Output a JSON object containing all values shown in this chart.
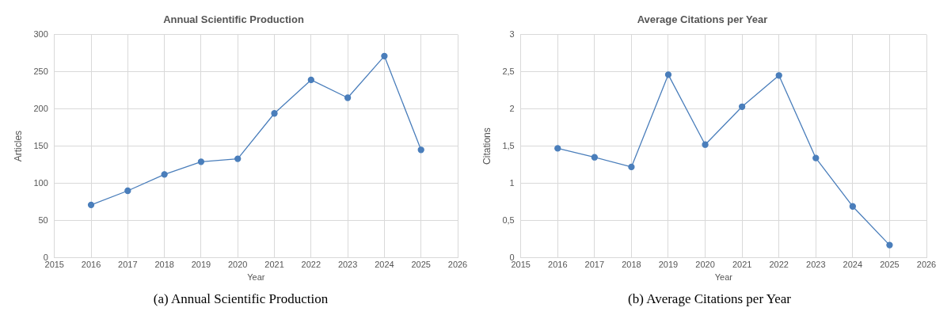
{
  "chart_data": [
    {
      "type": "line",
      "title": "Annual Scientific Production",
      "xlabel": "Year",
      "ylabel": "Articles",
      "x": [
        2016,
        2017,
        2018,
        2019,
        2020,
        2021,
        2022,
        2023,
        2024,
        2025
      ],
      "series": [
        {
          "color": "#4a7ebb",
          "values": [
            71,
            90,
            112,
            129,
            133,
            194,
            239,
            215,
            271,
            145
          ]
        }
      ],
      "xlim": [
        2015,
        2026
      ],
      "xticks": [
        2015,
        2016,
        2017,
        2018,
        2019,
        2020,
        2021,
        2022,
        2023,
        2024,
        2025,
        2026
      ],
      "ylim": [
        0,
        300
      ],
      "yticks": [
        0,
        50,
        100,
        150,
        200,
        250,
        300
      ],
      "grid": true,
      "legend": false,
      "marker": "circle",
      "line_style": "solid",
      "annotations": [
        "(a) Annual Scientific Production"
      ]
    },
    {
      "type": "line",
      "title": "Average Citations per Year",
      "xlabel": "Year",
      "ylabel": "Citations",
      "x": [
        2016,
        2017,
        2018,
        2019,
        2020,
        2021,
        2022,
        2023,
        2024,
        2025
      ],
      "series": [
        {
          "color": "#4a7ebb",
          "values": [
            1.47,
            1.35,
            1.22,
            2.46,
            1.52,
            2.03,
            2.45,
            1.34,
            0.69,
            0.17
          ]
        }
      ],
      "xlim": [
        2015,
        2026
      ],
      "xticks": [
        2015,
        2016,
        2017,
        2018,
        2019,
        2020,
        2021,
        2022,
        2023,
        2024,
        2025,
        2026
      ],
      "ylim": [
        0,
        3
      ],
      "yticks": [
        0,
        {
          "value": 0.5,
          "label": "0,5"
        },
        1,
        {
          "value": 1.5,
          "label": "1,5"
        },
        2,
        {
          "value": 2.5,
          "label": "2,5"
        },
        3
      ],
      "grid": true,
      "legend": false,
      "marker": "circle",
      "line_style": "solid",
      "annotations": [
        "(b) Average Citations per Year"
      ]
    }
  ]
}
